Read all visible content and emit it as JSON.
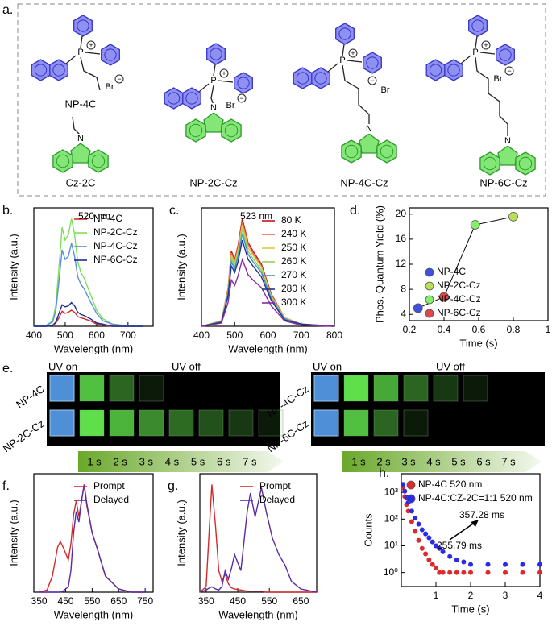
{
  "panels": {
    "a": "a.",
    "e": "e."
  },
  "atoms": {
    "phosphorus": "P",
    "cation": "+",
    "bromide": "Br",
    "anion": "−",
    "nitrogen": "N"
  },
  "structures": [
    {
      "label": "NP-4C"
    },
    {
      "label": "Cz-2C"
    },
    {
      "label": "NP-2C-Cz"
    },
    {
      "label": "NP-4C-Cz"
    },
    {
      "label": "NP-6C-Cz"
    }
  ],
  "photos": {
    "uv_on": "UV on",
    "uv_off": "UV off",
    "rows_left": [
      "NP-4C",
      "NP-2C-Cz"
    ],
    "rows_right": [
      "NP-4C-Cz",
      "NP-6C-Cz"
    ],
    "timeline": [
      "1 s",
      "2 s",
      "3 s",
      "4 s",
      "5 s",
      "6 s",
      "7 s"
    ]
  },
  "chart_data": [
    {
      "type": "line",
      "panel_label": "b.",
      "x_label": "Wavelength (nm)",
      "y_label": "Intensity (a.u.)",
      "annotations": [
        "520 nm"
      ],
      "legend": "upper right",
      "x": [
        400,
        440,
        460,
        470,
        480,
        490,
        500,
        510,
        520,
        530,
        540,
        550,
        560,
        580,
        600,
        620,
        650,
        700,
        750
      ],
      "xlim": [
        400,
        780
      ],
      "xticks": [
        400,
        500,
        600,
        700
      ],
      "ylim": [
        0,
        1.1
      ],
      "series": [
        {
          "name": "NP-4C",
          "color": "#d22b2b",
          "values": [
            0,
            0,
            0.01,
            0.03,
            0.08,
            0.14,
            0.12,
            0.13,
            0.15,
            0.13,
            0.09,
            0.08,
            0.07,
            0.05,
            0.02,
            0.01,
            0,
            0,
            0
          ]
        },
        {
          "name": "NP-2C-Cz",
          "color": "#7ee05a",
          "values": [
            0,
            0.01,
            0.05,
            0.2,
            0.55,
            0.92,
            0.8,
            0.85,
            1.0,
            0.85,
            0.6,
            0.5,
            0.45,
            0.3,
            0.15,
            0.07,
            0.02,
            0.005,
            0
          ]
        },
        {
          "name": "NP-4C-Cz",
          "color": "#5a8fdc",
          "values": [
            0,
            0.01,
            0.04,
            0.15,
            0.42,
            0.71,
            0.62,
            0.65,
            0.77,
            0.65,
            0.46,
            0.39,
            0.35,
            0.23,
            0.12,
            0.05,
            0.02,
            0,
            0
          ]
        },
        {
          "name": "NP-6C-Cz",
          "color": "#1d2b8f",
          "values": [
            0,
            0,
            0.01,
            0.04,
            0.12,
            0.2,
            0.18,
            0.19,
            0.22,
            0.19,
            0.13,
            0.11,
            0.1,
            0.07,
            0.03,
            0.02,
            0,
            0,
            0
          ]
        }
      ]
    },
    {
      "type": "line",
      "panel_label": "c.",
      "x_label": "Wavelength (nm)",
      "y_label": "Intensity (a.u.)",
      "annotations": [
        "523 nm"
      ],
      "legend": "upper right",
      "x": [
        400,
        460,
        480,
        490,
        500,
        510,
        523,
        540,
        555,
        580,
        610,
        650,
        700,
        800
      ],
      "xlim": [
        400,
        800
      ],
      "xticks": [
        400,
        500,
        600,
        700,
        800
      ],
      "ylim": [
        0,
        1.1
      ],
      "series": [
        {
          "name": "80 K",
          "color": "#c0141e",
          "values": [
            0,
            0.05,
            0.35,
            0.7,
            0.62,
            0.75,
            1.0,
            0.78,
            0.7,
            0.58,
            0.3,
            0.08,
            0.02,
            0
          ]
        },
        {
          "name": "240 K",
          "color": "#e8704a",
          "values": [
            0,
            0.05,
            0.34,
            0.68,
            0.6,
            0.73,
            0.97,
            0.76,
            0.68,
            0.56,
            0.29,
            0.08,
            0.02,
            0
          ]
        },
        {
          "name": "250 K",
          "color": "#d8c844",
          "values": [
            0,
            0.05,
            0.33,
            0.66,
            0.58,
            0.71,
            0.94,
            0.73,
            0.66,
            0.55,
            0.28,
            0.08,
            0.02,
            0
          ]
        },
        {
          "name": "260 K",
          "color": "#8fd45a",
          "values": [
            0,
            0.05,
            0.32,
            0.63,
            0.56,
            0.68,
            0.9,
            0.7,
            0.63,
            0.52,
            0.27,
            0.07,
            0.02,
            0
          ]
        },
        {
          "name": "270 K",
          "color": "#3f8fd2",
          "values": [
            0,
            0.04,
            0.3,
            0.6,
            0.53,
            0.65,
            0.86,
            0.67,
            0.6,
            0.5,
            0.26,
            0.07,
            0.02,
            0
          ]
        },
        {
          "name": "280 K",
          "color": "#27318f",
          "values": [
            0,
            0.04,
            0.28,
            0.56,
            0.5,
            0.6,
            0.8,
            0.62,
            0.56,
            0.46,
            0.24,
            0.06,
            0.02,
            0
          ]
        },
        {
          "name": "300 K",
          "color": "#8a2a9c",
          "values": [
            0,
            0.03,
            0.22,
            0.43,
            0.38,
            0.47,
            0.62,
            0.48,
            0.43,
            0.36,
            0.19,
            0.05,
            0.01,
            0
          ]
        }
      ]
    },
    {
      "type": "scatter",
      "panel_label": "d.",
      "x_label": "Time (s)",
      "y_label": "Phos. Quantum Yield (%)",
      "legend": "lower right",
      "connect": true,
      "xlim": [
        0.2,
        1
      ],
      "xticks": [
        0.2,
        0.4,
        0.6,
        0.8,
        1
      ],
      "ylim": [
        3,
        21
      ],
      "yticks": [
        4,
        8,
        12,
        16,
        20
      ],
      "series": [
        {
          "name": "NP-4C",
          "color": "#3f4fe0",
          "x": [
            0.25
          ],
          "values": [
            5.0
          ]
        },
        {
          "name": "NP-2C-Cz",
          "color": "#b9df5a",
          "x": [
            0.8
          ],
          "values": [
            19.6
          ]
        },
        {
          "name": "NP-4C-Cz",
          "color": "#86ef6a",
          "x": [
            0.58
          ],
          "values": [
            18.3
          ]
        },
        {
          "name": "NP-6C-Cz",
          "color": "#e0474a",
          "x": [
            0.4
          ],
          "values": [
            6.8
          ]
        }
      ]
    },
    {
      "type": "line",
      "panel_label": "f.",
      "x_label": "Wavelength (nm)",
      "y_label": "Intensity (a.u.)",
      "legend": "upper right",
      "x": [
        350,
        380,
        400,
        420,
        430,
        440,
        460,
        470,
        480,
        490,
        500,
        510,
        520,
        530,
        550,
        570,
        600,
        650,
        700,
        750
      ],
      "xlim": [
        330,
        780
      ],
      "xticks": [
        350,
        450,
        550,
        650,
        750
      ],
      "ylim": [
        0,
        1.1
      ],
      "series": [
        {
          "name": "Prompt",
          "color": "#d22b2b",
          "values": [
            0,
            0.02,
            0.15,
            0.42,
            0.47,
            0.42,
            0.3,
            0.45,
            0.72,
            0.85,
            0.7,
            0.85,
            1.0,
            0.8,
            0.55,
            0.4,
            0.15,
            0.03,
            0,
            0
          ]
        },
        {
          "name": "Delayed",
          "color": "#5a2aa8",
          "values": [
            0,
            0,
            0,
            0,
            0,
            0.01,
            0.05,
            0.2,
            0.55,
            0.75,
            0.65,
            0.85,
            1.0,
            0.82,
            0.55,
            0.4,
            0.15,
            0.03,
            0,
            0
          ]
        }
      ]
    },
    {
      "type": "line",
      "panel_label": "g.",
      "x_label": "Wavelength (nm)",
      "y_label": "Intensity (a.u.)",
      "legend": "upper right",
      "x": [
        330,
        350,
        360,
        368,
        380,
        390,
        400,
        410,
        420,
        430,
        440,
        460,
        480,
        490,
        505,
        525,
        540,
        560,
        580,
        600,
        620,
        650,
        700
      ],
      "xlim": [
        330,
        700
      ],
      "xticks": [
        350,
        450,
        550,
        650
      ],
      "ylim": [
        0,
        1.1
      ],
      "series": [
        {
          "name": "Prompt",
          "color": "#d22b2b",
          "values": [
            0,
            0.05,
            0.6,
            1.0,
            0.6,
            0.2,
            0.1,
            0.17,
            0.08,
            0.04,
            0.03,
            0.02,
            0.01,
            0.01,
            0.01,
            0.01,
            0,
            0,
            0,
            0,
            0,
            0,
            0
          ]
        },
        {
          "name": "Delayed",
          "color": "#5a2aa8",
          "values": [
            0,
            0.02,
            0.04,
            0.05,
            0.03,
            0.02,
            0.05,
            0.2,
            0.12,
            0.22,
            0.35,
            0.2,
            0.75,
            0.92,
            0.7,
            0.97,
            0.75,
            0.5,
            0.35,
            0.25,
            0.1,
            0.03,
            0
          ]
        }
      ]
    },
    {
      "type": "scatter",
      "panel_label": "h.",
      "x_label": "Time (s)",
      "y_label": "Counts",
      "legend": "upper right",
      "log_y": true,
      "annotations": [
        "357.28 ms",
        "255.79 ms"
      ],
      "x": [
        0.05,
        0.1,
        0.15,
        0.2,
        0.3,
        0.4,
        0.5,
        0.6,
        0.7,
        0.8,
        0.9,
        1.0,
        1.1,
        1.2,
        1.4,
        1.6,
        1.8,
        2.0,
        2.5,
        3.0,
        3.5,
        4.0
      ],
      "xlim": [
        0,
        4
      ],
      "xticks": [
        1,
        2,
        3,
        4
      ],
      "ylim": [
        0.3,
        5000
      ],
      "yticks": [
        {
          "value": 1,
          "label": "10⁰"
        },
        {
          "value": 10,
          "label": "10¹"
        },
        {
          "value": 100,
          "label": "10²"
        },
        {
          "value": 1000,
          "label": "10³"
        }
      ],
      "series": [
        {
          "name": "NP-4C 520 nm",
          "color": "#e02a2a",
          "values": [
            1500,
            700,
            350,
            200,
            80,
            35,
            16,
            8,
            5,
            3,
            2,
            1.5,
            1,
            1,
            1,
            1,
            1,
            1,
            1,
            1,
            1,
            1
          ]
        },
        {
          "name": "NP-4C:CZ-2C=1:1 520 nm",
          "color": "#2a2ae8",
          "values": [
            2000,
            1100,
            650,
            420,
            200,
            110,
            65,
            40,
            28,
            20,
            14,
            10,
            8,
            6,
            4,
            3,
            2.5,
            2,
            2,
            2,
            2,
            2
          ]
        }
      ]
    }
  ]
}
